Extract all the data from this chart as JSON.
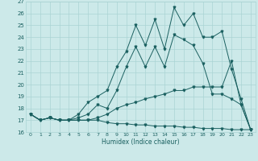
{
  "xlabel": "Humidex (Indice chaleur)",
  "xlim_min": -0.5,
  "xlim_max": 23.5,
  "ylim_min": 16,
  "ylim_max": 27,
  "yticks": [
    16,
    17,
    18,
    19,
    20,
    21,
    22,
    23,
    24,
    25,
    26,
    27
  ],
  "xticks": [
    0,
    1,
    2,
    3,
    4,
    5,
    6,
    7,
    8,
    9,
    10,
    11,
    12,
    13,
    14,
    15,
    16,
    17,
    18,
    19,
    20,
    21,
    22,
    23
  ],
  "bg_color": "#cce9e9",
  "line_color": "#1a6060",
  "grid_color": "#aad4d4",
  "x": [
    0,
    1,
    2,
    3,
    4,
    5,
    6,
    7,
    8,
    9,
    10,
    11,
    12,
    13,
    14,
    15,
    16,
    17,
    18,
    19,
    20,
    21,
    22,
    23
  ],
  "series_top": [
    17.5,
    17.0,
    17.2,
    17.0,
    17.0,
    17.5,
    18.5,
    19.0,
    19.5,
    21.5,
    22.8,
    25.0,
    23.3,
    25.5,
    23.0,
    26.5,
    25.0,
    26.0,
    24.0,
    24.0,
    24.5,
    21.3,
    18.8,
    16.2
  ],
  "series_mid_hi": [
    17.5,
    17.0,
    17.2,
    17.0,
    17.0,
    17.2,
    17.5,
    18.3,
    18.0,
    19.5,
    21.5,
    23.2,
    21.5,
    23.2,
    21.5,
    24.2,
    23.8,
    23.3,
    21.8,
    19.2,
    19.2,
    18.8,
    18.3,
    16.2
  ],
  "series_mid_lo": [
    17.5,
    17.0,
    17.2,
    17.0,
    17.0,
    17.0,
    17.0,
    17.2,
    17.5,
    18.0,
    18.3,
    18.5,
    18.8,
    19.0,
    19.2,
    19.5,
    19.5,
    19.8,
    19.8,
    19.8,
    19.8,
    22.0,
    18.3,
    16.2
  ],
  "series_bot": [
    17.5,
    17.0,
    17.2,
    17.0,
    17.0,
    17.0,
    17.0,
    17.0,
    16.8,
    16.7,
    16.7,
    16.6,
    16.6,
    16.5,
    16.5,
    16.5,
    16.4,
    16.4,
    16.3,
    16.3,
    16.3,
    16.2,
    16.2,
    16.2
  ]
}
